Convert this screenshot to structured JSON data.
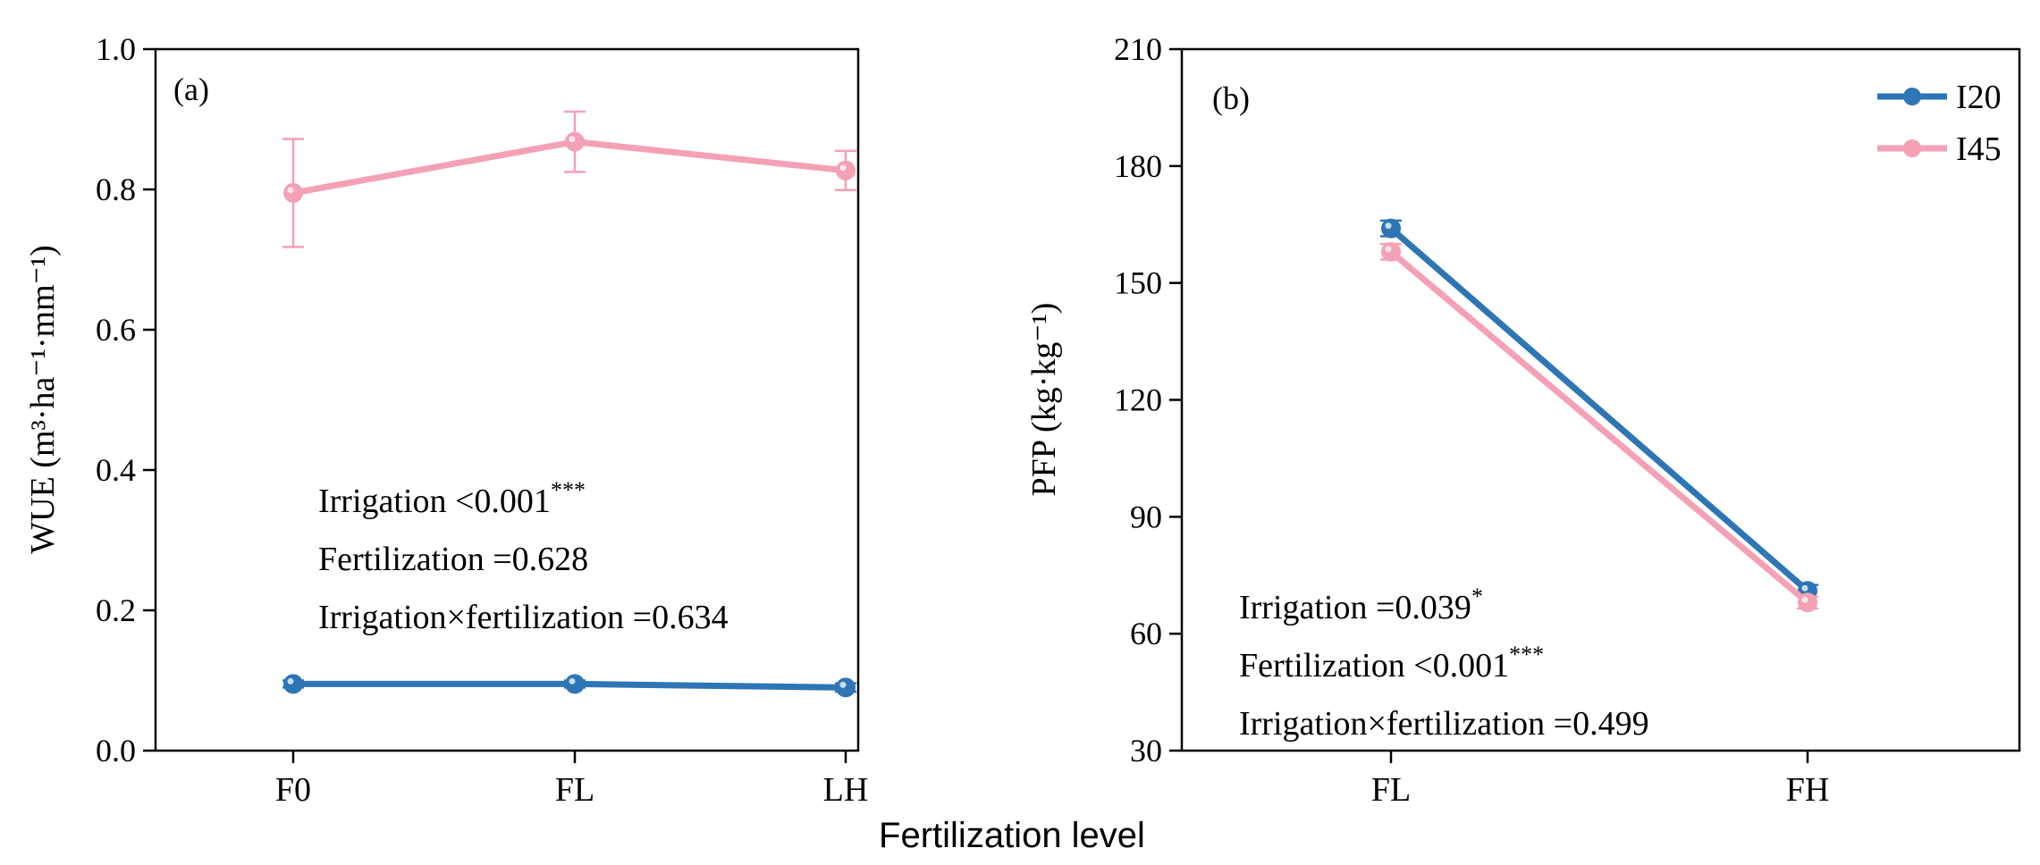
{
  "figure": {
    "shared_xlabel": "Fertilization level"
  },
  "colors": {
    "I20": "#2e75b6",
    "I45": "#f4a0b5"
  },
  "chart_data": [
    {
      "type": "line",
      "panel_tag": "(a)",
      "ylabel": "WUE (m³·ha⁻¹·mm⁻¹)",
      "categories": [
        "F0",
        "FL",
        "LH"
      ],
      "ylim": [
        0.0,
        1.0
      ],
      "yticks": [
        0.0,
        0.2,
        0.4,
        0.6,
        0.8,
        1.0
      ],
      "ytick_labels": [
        "0.0",
        "0.2",
        "0.4",
        "0.6",
        "0.8",
        "1.0"
      ],
      "series": [
        {
          "name": "I20",
          "values": [
            0.095,
            0.095,
            0.09
          ],
          "errors": [
            0.005,
            0.005,
            0.006
          ]
        },
        {
          "name": "I45",
          "values": [
            0.795,
            0.868,
            0.827
          ],
          "errors": [
            0.077,
            0.043,
            0.028
          ]
        }
      ],
      "annotations": [
        {
          "text": "Irrigation <0.001",
          "sup": "***"
        },
        {
          "text": "Fertilization =0.628",
          "sup": ""
        },
        {
          "text": "Irrigation×fertilization =0.634",
          "sup": ""
        }
      ]
    },
    {
      "type": "line",
      "panel_tag": "(b)",
      "ylabel": "PFP (kg·kg⁻¹)",
      "categories": [
        "FL",
        "FH"
      ],
      "ylim": [
        30,
        210
      ],
      "yticks": [
        30,
        60,
        90,
        120,
        150,
        180,
        210
      ],
      "ytick_labels": [
        "30",
        "60",
        "90",
        "120",
        "150",
        "180",
        "210"
      ],
      "legend": [
        "I20",
        "I45"
      ],
      "series": [
        {
          "name": "I20",
          "values": [
            164,
            71
          ],
          "errors": [
            2.0,
            1.5
          ]
        },
        {
          "name": "I45",
          "values": [
            158,
            68
          ],
          "errors": [
            2.0,
            1.5
          ]
        }
      ],
      "annotations": [
        {
          "text": "Irrigation =0.039",
          "sup": "*"
        },
        {
          "text": "Fertilization <0.001",
          "sup": "***"
        },
        {
          "text": "Irrigation×fertilization =0.499",
          "sup": ""
        }
      ]
    }
  ]
}
